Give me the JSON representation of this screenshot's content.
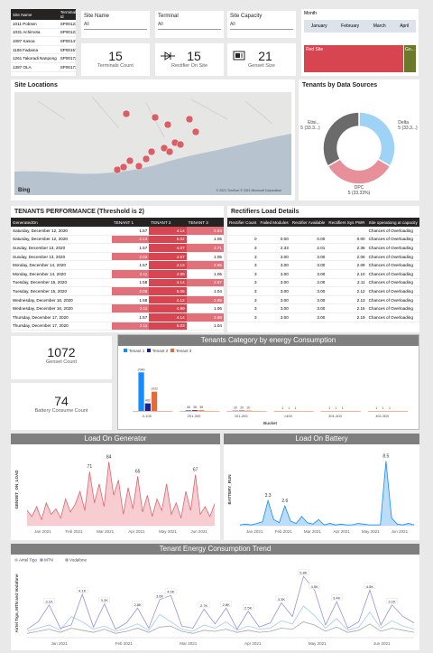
{
  "site_table": {
    "headers": [
      "Site Name",
      "Terminal Id"
    ],
    "rows": [
      [
        "1011 Pobsen",
        "SP001231"
      ],
      [
        "1031 Achimota",
        "SP001230"
      ],
      [
        "1087 Kasoa",
        "SP001471"
      ],
      [
        "1106 Fadama",
        "SP001576"
      ],
      [
        "1261 Takoradi Nanpong",
        "SP001721"
      ],
      [
        "1387 OLA",
        "SP001731"
      ]
    ]
  },
  "slicers": [
    {
      "label": "Site Name",
      "value": "All"
    },
    {
      "label": "Terminal",
      "value": "All"
    },
    {
      "label": "Site Capacity",
      "value": "All"
    }
  ],
  "kpis": [
    {
      "value": 15,
      "label": "Terminals Count"
    },
    {
      "value": 15,
      "label": "Rectifier On Site"
    },
    {
      "value": 21,
      "label": "Genset Size"
    },
    {
      "value": 1072,
      "label": "Genset Count"
    },
    {
      "value": 74,
      "label": "Battery Consume Count"
    }
  ],
  "month_panel": {
    "title": "Month",
    "months": [
      "January",
      "February",
      "March",
      "April"
    ],
    "bars": [
      "Red Site",
      "Go..."
    ]
  },
  "map": {
    "title": "Site Locations",
    "logo": "Bing",
    "credit": "© 2021 TomTom © 2021 Microsoft Corporation"
  },
  "tenant_performance": {
    "title": "TENANTS PERFORMANCE (Threshold is 2)",
    "threshold": 2,
    "columns": [
      "GeneratedOn",
      "TENANT 1",
      "TENANT 2",
      "TENANT 3"
    ],
    "rows": [
      [
        "Saturday, December 12, 2020",
        1.57,
        4.14,
        2.84
      ],
      [
        "Saturday, December 12, 2020",
        2.12,
        5.02,
        1.05
      ],
      [
        "Sunday, December 13, 2020",
        1.57,
        4.07,
        2.71
      ],
      [
        "Sunday, December 13, 2020",
        2.02,
        4.97,
        1.05
      ],
      [
        "Monday, December 14, 2020",
        1.57,
        4.13,
        2.65
      ],
      [
        "Monday, December 14, 2020",
        2.11,
        4.99,
        1.05
      ],
      [
        "Tuesday, December 15, 2020",
        1.58,
        4.14,
        2.67
      ],
      [
        "Tuesday, December 15, 2020",
        2.05,
        5.05,
        1.04
      ],
      [
        "Wednesday, December 16, 2020",
        1.58,
        4.12,
        2.65
      ],
      [
        "Wednesday, December 16, 2020",
        2.11,
        4.99,
        1.06
      ],
      [
        "Thursday, December 17, 2020",
        1.57,
        4.14,
        2.68
      ],
      [
        "Thursday, December 17, 2020",
        2.11,
        5.03,
        1.04
      ]
    ]
  },
  "rectifiers": {
    "title": "Rectifiers Load Details",
    "columns": [
      "Rectifier Count",
      "Failed Modules",
      "Rectifier Available",
      "Rectifiers Sys PWR",
      "Site operationg at capacity"
    ],
    "rows": [
      [
        null,
        null,
        null,
        null,
        "Chances of Overloading"
      ],
      [
        0,
        "0.00",
        "0.00",
        "0.00",
        "Chances of Overloading"
      ],
      [
        3,
        "2.33",
        "2.01",
        "2.36",
        "Chances of Overloading"
      ],
      [
        3,
        "3.00",
        "3.00",
        "2.06",
        "Chances of Overloading"
      ],
      [
        3,
        "3.00",
        "3.00",
        "2.08",
        "Chances of Overloading"
      ],
      [
        3,
        "3.00",
        "3.00",
        "2.10",
        "Chances of Overloading"
      ],
      [
        3,
        "3.00",
        "3.00",
        "2.11",
        "Chances of Overloading"
      ],
      [
        3,
        "3.00",
        "3.00",
        "2.12",
        "Chances of Overloading"
      ],
      [
        3,
        "3.00",
        "3.00",
        "2.13",
        "Chances of Overloading"
      ],
      [
        3,
        "3.00",
        "3.00",
        "2.16",
        "Chances of Overloading"
      ],
      [
        3,
        "3.00",
        "3.00",
        "2.19",
        "Chances of Overloading"
      ]
    ]
  },
  "chart_data": [
    {
      "type": "pie",
      "title": "Tenants by Data Sources",
      "categories": [
        "Delta",
        "DPC",
        "Etisi..."
      ],
      "values": [
        5,
        5,
        5
      ],
      "value_labels": [
        "5 (33.3...)",
        "5 (33.33%)",
        "5 (33.3...)"
      ],
      "colors": [
        "#9fd3f5",
        "#e8909a",
        "#6b6b6b"
      ]
    },
    {
      "type": "bar",
      "title": "Tenants Category by energy Consumption",
      "x_label": "Bucket",
      "categories": [
        "0-100",
        "201-300",
        "101-200",
        ">400",
        "301-400",
        "401-500"
      ],
      "ylim": [
        0,
        2300
      ],
      "series": [
        {
          "name": "Tenant 1",
          "color": "#118dff",
          "values": [
            2046,
            38,
            20,
            1,
            1,
            1
          ]
        },
        {
          "name": "Tenant 2",
          "color": "#12239e",
          "values": [
            402,
            38,
            20,
            1,
            1,
            1
          ]
        },
        {
          "name": "Tenant 3",
          "color": "#e66c37",
          "values": [
            1022,
            38,
            20,
            1,
            1,
            1
          ]
        }
      ]
    },
    {
      "type": "line",
      "title": "Load On Generator",
      "y_label": "GENSET_ON_LOAD",
      "color": "#e06470",
      "area_color": "#f4b8bd",
      "x_tick_labels": [
        "Jan 2021",
        "Feb 2021",
        "Mar 2021",
        "Apr 2021",
        "May 2021",
        "Jun 2021"
      ],
      "ylim": [
        0,
        95
      ],
      "values": [
        20,
        12,
        25,
        8,
        30,
        15,
        22,
        10,
        35,
        18,
        28,
        45,
        20,
        71,
        30,
        55,
        25,
        84,
        40,
        60,
        15,
        50,
        22,
        65,
        18,
        40,
        12,
        35,
        20,
        55,
        15,
        30,
        10,
        45,
        20,
        67,
        15,
        25,
        12,
        29
      ]
    },
    {
      "type": "line",
      "title": "Load On Battery",
      "y_label": "BATTERY_RUN",
      "color": "#118dff",
      "area_color": "#9fcff7",
      "x_tick_labels": [
        "Jan 2021",
        "Feb 2021",
        "Mar 2021",
        "Apr 2021",
        "May 2021",
        "Jun 2021"
      ],
      "ylim": [
        0,
        9.5
      ],
      "values": [
        0.1,
        0.2,
        0.1,
        0.3,
        0.5,
        3.3,
        0.8,
        0.4,
        2.6,
        0.6,
        0.3,
        1.2,
        0.4,
        0.2,
        0.8,
        0.1,
        0.3,
        0.1,
        0.2,
        0.1,
        0.1,
        0.3,
        0.2,
        0.1,
        0.1,
        0.1,
        8.5,
        1.0,
        0.2,
        0.1,
        0.3,
        0.1
      ]
    },
    {
      "type": "multiline",
      "title": "Tenant Energy Consumption Trend",
      "y_label": "Airtel Tigo, MTN and Vodafone",
      "x_tick_labels": [
        "Jan 2021",
        "Feb 2021",
        "Mar 2021",
        "Apr 2021",
        "May 2021",
        "Jun 2021"
      ],
      "ylim": [
        0,
        6500
      ],
      "series": [
        {
          "name": "Airtel Tigo",
          "color": "#9fcbef",
          "values": [
            600,
            900,
            1200,
            700,
            2000,
            1500,
            800,
            1100,
            600,
            900,
            1300,
            700,
            2200,
            1500,
            800,
            600,
            1200,
            900,
            1500,
            700,
            1100,
            800,
            900,
            1600,
            1300,
            3000,
            2100,
            900,
            1800,
            700,
            1000,
            2400,
            900,
            1600,
            1100,
            800
          ]
        },
        {
          "name": "MTN",
          "color": "#9b8fd6",
          "values": [
            800,
            1500,
            3100,
            900,
            1200,
            4100,
            1000,
            3200,
            800,
            1400,
            2800,
            900,
            3600,
            4000,
            1100,
            900,
            2700,
            1300,
            2800,
            800,
            2500,
            1000,
            1400,
            3300,
            2000,
            5800,
            4500,
            1200,
            3400,
            900,
            1500,
            4500,
            1200,
            3100,
            2000,
            1400
          ],
          "value_labels": [
            null,
            null,
            "3.1K",
            null,
            null,
            "4.1K",
            null,
            "3.2K",
            null,
            null,
            "2.8K",
            null,
            "3.6K",
            "4.0K",
            null,
            null,
            "2.7K",
            null,
            "2.8K",
            null,
            "2.5K",
            null,
            null,
            "3.3K",
            null,
            "5.8K",
            "4.5K",
            null,
            "3.4K",
            null,
            null,
            "4.5K",
            null,
            "3.1K",
            null,
            null
          ]
        },
        {
          "name": "Vodafone",
          "color": "#a6a6a6",
          "values": [
            400,
            600,
            800,
            500,
            900,
            700,
            500,
            800,
            400,
            600,
            900,
            500,
            1000,
            1100,
            600,
            400,
            700,
            600,
            800,
            500,
            700,
            500,
            600,
            900,
            800,
            1500,
            1200,
            600,
            1000,
            500,
            700,
            1300,
            600,
            900,
            700,
            500
          ]
        }
      ]
    }
  ]
}
